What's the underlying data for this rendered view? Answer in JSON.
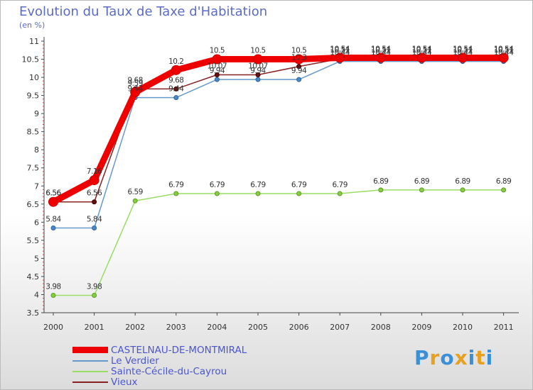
{
  "header": {
    "title": "Evolution du Taux de Taxe d'Habitation",
    "subtitle": "(en %)"
  },
  "chart_data": {
    "type": "line",
    "title": "Evolution du Taux de Taxe d'Habitation",
    "ylabel": "(en %)",
    "xlabel": "",
    "x": [
      2000,
      2001,
      2002,
      2003,
      2004,
      2005,
      2006,
      2007,
      2008,
      2009,
      2010,
      2011
    ],
    "ylim": [
      3.5,
      11
    ],
    "yticks": [
      3.5,
      4,
      4.5,
      5,
      5.5,
      6,
      6.5,
      7,
      7.5,
      8,
      8.5,
      9,
      9.5,
      10,
      10.5,
      11
    ],
    "ytick_labels": [
      "3.5",
      "4",
      "4.5",
      "5",
      "5.5",
      "6",
      "6.5",
      "7",
      "7.5",
      "8",
      "8.5",
      "9",
      "9.5",
      "10",
      "10.5",
      "11"
    ],
    "grid": false,
    "series": [
      {
        "name": "CASTELNAU-DE-MONTMIRAL",
        "color": "#ee0000",
        "values": [
          6.56,
          7.16,
          9.59,
          10.2,
          10.5,
          10.5,
          10.5,
          10.54,
          10.54,
          10.54,
          10.54,
          10.54
        ],
        "labels": [
          "6.56",
          "7.16",
          "9.59",
          "10.2",
          "10.5",
          "10.5",
          "10.5",
          "10.54",
          "10.54",
          "10.54",
          "10.54",
          "10.54"
        ]
      },
      {
        "name": "Le Verdier",
        "color": "#6699cc",
        "values": [
          5.84,
          5.84,
          9.44,
          9.44,
          9.94,
          9.94,
          9.94,
          10.44,
          10.44,
          10.44,
          10.44,
          10.44
        ],
        "labels": [
          "5.84",
          "5.84",
          "9.44",
          "9.44",
          "9.94",
          "9.94",
          "9.94",
          "10.44",
          "10.44",
          "10.44",
          "10.44",
          "10.44"
        ]
      },
      {
        "name": "Sainte-Cécile-du-Cayrou",
        "color": "#99dd66",
        "values": [
          3.98,
          3.98,
          6.59,
          6.79,
          6.79,
          6.79,
          6.79,
          6.79,
          6.89,
          6.89,
          6.89,
          6.89
        ],
        "labels": [
          "3.98",
          "3.98",
          "6.59",
          "6.79",
          "6.79",
          "6.79",
          "6.79",
          "6.79",
          "6.89",
          "6.89",
          "6.89",
          "6.89"
        ]
      },
      {
        "name": "Vieux",
        "color": "#882222",
        "values": [
          6.56,
          6.56,
          9.68,
          9.68,
          10.07,
          10.07,
          10.3,
          10.51,
          10.51,
          10.51,
          10.51,
          10.51
        ],
        "labels": [
          "6.56",
          "6.56",
          "9.68",
          "9.68",
          "10.07",
          "10.07",
          "10.3",
          "10.51",
          "10.51",
          "10.51",
          "10.51",
          "10.51"
        ]
      }
    ]
  },
  "legend": {
    "items": [
      {
        "label": "CASTELNAU-DE-MONTMIRAL",
        "color": "#ee0000"
      },
      {
        "label": "Le Verdier",
        "color": "#6699cc"
      },
      {
        "label": "Sainte-Cécile-du-Cayrou",
        "color": "#99dd66"
      },
      {
        "label": "Vieux",
        "color": "#882222"
      }
    ]
  },
  "logo": {
    "letters": [
      "P",
      "r",
      "o",
      "x",
      "i",
      "t",
      "i"
    ],
    "colors": [
      "#3a8fd6",
      "#e8a020",
      "#3a8fd6",
      "#e8a020",
      "#3a8fd6",
      "#e8a020",
      "#3a8fd6"
    ]
  }
}
